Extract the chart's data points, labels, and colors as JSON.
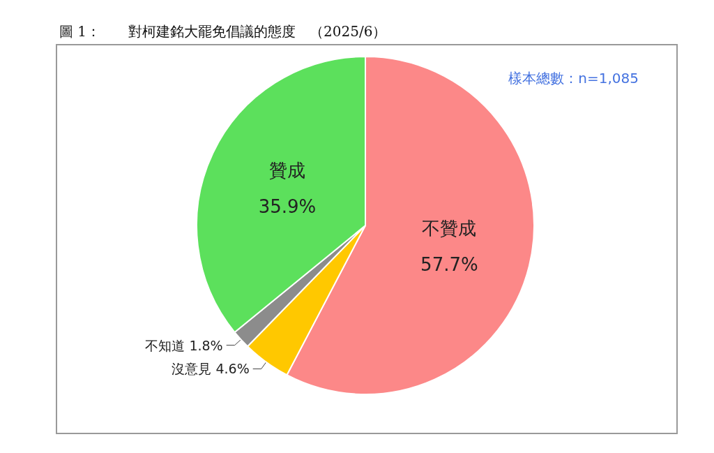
{
  "chart_data": {
    "type": "pie",
    "title": "圖 1：　　對柯建銘大罷免倡議的態度　（2025/6）",
    "categories": [
      "不贊成",
      "沒意見",
      "不知道",
      "贊成"
    ],
    "values": [
      57.7,
      4.6,
      1.8,
      35.9
    ],
    "colors": [
      "#fc8888",
      "#ffc800",
      "#8c8c8c",
      "#5ce05c"
    ],
    "value_labels": [
      "57.7%",
      "4.6%",
      "1.8%",
      "35.9%"
    ],
    "annotations": [
      "樣本總數：n=1,085"
    ],
    "legend": false
  }
}
